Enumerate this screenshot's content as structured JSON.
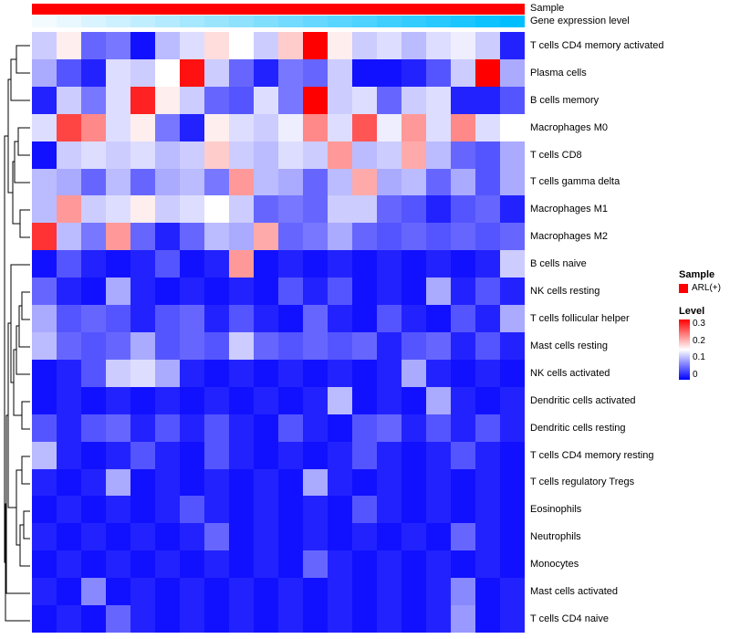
{
  "figure": {
    "annotations": {
      "sample_label": "Sample",
      "expression_label": "Gene expression level"
    },
    "legend": {
      "sample_title": "Sample",
      "sample_items": [
        {
          "label": "ARL(+)",
          "color": "#FF0000"
        }
      ],
      "level_title": "Level",
      "level_ticks": [
        "0.3",
        "0.2",
        "0.1",
        "0"
      ]
    },
    "colors": {
      "low": "#0000FF",
      "mid": "#FFFFFF",
      "high": "#FF0000",
      "annotation_sample": "#FF0000",
      "annotation_expr_start": "#F4FBFE",
      "annotation_expr_end": "#00BFFF"
    }
  },
  "chart_data": {
    "type": "heatmap",
    "title": "",
    "n_samples": 20,
    "vmin": 0,
    "vmax": 0.3,
    "legend_position": "right",
    "rows": [
      "T cells CD4 memory activated",
      "Plasma cells",
      "B cells memory",
      "Macrophages M0",
      "T cells CD8",
      "T cells gamma delta",
      "Macrophages M1",
      "Macrophages M2",
      "B cells naive",
      "NK cells resting",
      "T cells follicular helper",
      "Mast cells resting",
      "NK cells activated",
      "Dendritic cells activated",
      "Dendritic cells resting",
      "T cells CD4 memory resting",
      "T cells regulatory Tregs",
      "Eosinophils",
      "Neutrophils",
      "Monocytes",
      "Mast cells activated",
      "T cells CD4 naive"
    ],
    "column_annotations": {
      "sample_group": [
        "ARL(+)",
        "ARL(+)",
        "ARL(+)",
        "ARL(+)",
        "ARL(+)",
        "ARL(+)",
        "ARL(+)",
        "ARL(+)",
        "ARL(+)",
        "ARL(+)",
        "ARL(+)",
        "ARL(+)",
        "ARL(+)",
        "ARL(+)",
        "ARL(+)",
        "ARL(+)",
        "ARL(+)",
        "ARL(+)",
        "ARL(+)",
        "ARL(+)"
      ],
      "gene_expression_gradient": [
        0,
        0.05,
        0.11,
        0.16,
        0.21,
        0.26,
        0.32,
        0.37,
        0.42,
        0.47,
        0.53,
        0.58,
        0.63,
        0.68,
        0.74,
        0.79,
        0.84,
        0.89,
        0.95,
        1
      ]
    },
    "values": [
      [
        0.12,
        0.16,
        0.06,
        0.07,
        0.01,
        0.11,
        0.13,
        0.17,
        0.15,
        0.12,
        0.18,
        0.3,
        0.16,
        0.12,
        0.13,
        0.11,
        0.13,
        0.14,
        0.12,
        0.02
      ],
      [
        0.1,
        0.05,
        0.02,
        0.13,
        0.12,
        0.15,
        0.29,
        0.12,
        0.06,
        0.02,
        0.07,
        0.06,
        0.12,
        0.01,
        0.01,
        0.02,
        0.05,
        0.12,
        0.3,
        0.1
      ],
      [
        0.02,
        0.12,
        0.07,
        0.13,
        0.28,
        0.16,
        0.12,
        0.06,
        0.05,
        0.13,
        0.07,
        0.3,
        0.12,
        0.13,
        0.06,
        0.12,
        0.13,
        0.02,
        0.02,
        0.05
      ],
      [
        0.13,
        0.26,
        0.22,
        0.13,
        0.16,
        0.07,
        0.02,
        0.16,
        0.13,
        0.12,
        0.14,
        0.22,
        0.13,
        0.25,
        0.14,
        0.21,
        0.13,
        0.22,
        0.13,
        0.15
      ],
      [
        0.01,
        0.12,
        0.13,
        0.12,
        0.13,
        0.11,
        0.12,
        0.18,
        0.12,
        0.11,
        0.13,
        0.12,
        0.21,
        0.11,
        0.12,
        0.2,
        0.11,
        0.06,
        0.05,
        0.1
      ],
      [
        0.11,
        0.1,
        0.06,
        0.11,
        0.06,
        0.1,
        0.11,
        0.07,
        0.21,
        0.11,
        0.1,
        0.06,
        0.11,
        0.2,
        0.1,
        0.11,
        0.06,
        0.1,
        0.05,
        0.1
      ],
      [
        0.11,
        0.21,
        0.12,
        0.13,
        0.16,
        0.12,
        0.13,
        0.15,
        0.12,
        0.06,
        0.07,
        0.06,
        0.12,
        0.12,
        0.06,
        0.05,
        0.02,
        0.05,
        0.06,
        0.02
      ],
      [
        0.27,
        0.11,
        0.07,
        0.21,
        0.06,
        0.02,
        0.06,
        0.11,
        0.1,
        0.2,
        0.06,
        0.07,
        0.1,
        0.06,
        0.05,
        0.06,
        0.05,
        0.06,
        0.05,
        0.06
      ],
      [
        0.01,
        0.05,
        0.02,
        0.01,
        0.02,
        0.05,
        0.01,
        0.02,
        0.21,
        0.01,
        0.02,
        0.01,
        0.02,
        0.01,
        0.02,
        0.01,
        0.02,
        0.01,
        0.02,
        0.12
      ],
      [
        0.06,
        0.02,
        0.01,
        0.1,
        0.02,
        0.01,
        0.02,
        0.01,
        0.02,
        0.01,
        0.05,
        0.02,
        0.05,
        0.01,
        0.02,
        0.01,
        0.1,
        0.02,
        0.05,
        0.02
      ],
      [
        0.1,
        0.05,
        0.06,
        0.05,
        0.02,
        0.05,
        0.06,
        0.02,
        0.05,
        0.02,
        0.01,
        0.06,
        0.02,
        0.01,
        0.05,
        0.02,
        0.01,
        0.05,
        0.02,
        0.1
      ],
      [
        0.11,
        0.06,
        0.05,
        0.06,
        0.1,
        0.05,
        0.06,
        0.05,
        0.12,
        0.06,
        0.05,
        0.06,
        0.05,
        0.06,
        0.02,
        0.05,
        0.06,
        0.02,
        0.05,
        0.02
      ],
      [
        0.01,
        0.02,
        0.05,
        0.12,
        0.13,
        0.1,
        0.02,
        0.01,
        0.02,
        0.01,
        0.02,
        0.01,
        0.02,
        0.01,
        0.02,
        0.1,
        0.02,
        0.01,
        0.02,
        0.01
      ],
      [
        0.01,
        0.02,
        0.01,
        0.02,
        0.01,
        0.02,
        0.01,
        0.02,
        0.01,
        0.02,
        0.01,
        0.02,
        0.11,
        0.01,
        0.02,
        0.01,
        0.1,
        0.02,
        0.01,
        0.02
      ],
      [
        0.05,
        0.02,
        0.05,
        0.06,
        0.02,
        0.05,
        0.02,
        0.05,
        0.02,
        0.01,
        0.05,
        0.02,
        0.01,
        0.05,
        0.06,
        0.02,
        0.05,
        0.02,
        0.05,
        0.02
      ],
      [
        0.11,
        0.02,
        0.01,
        0.02,
        0.05,
        0.02,
        0.01,
        0.05,
        0.02,
        0.01,
        0.02,
        0.01,
        0.02,
        0.05,
        0.02,
        0.01,
        0.02,
        0.05,
        0.02,
        0.01
      ],
      [
        0.02,
        0.01,
        0.02,
        0.1,
        0.01,
        0.02,
        0.01,
        0.02,
        0.01,
        0.02,
        0.01,
        0.1,
        0.02,
        0.01,
        0.02,
        0.01,
        0.02,
        0.01,
        0.02,
        0.01
      ],
      [
        0.01,
        0.02,
        0.01,
        0.02,
        0.01,
        0.02,
        0.05,
        0.02,
        0.01,
        0.02,
        0.01,
        0.02,
        0.01,
        0.05,
        0.02,
        0.01,
        0.02,
        0.01,
        0.02,
        0.01
      ],
      [
        0.02,
        0.01,
        0.02,
        0.01,
        0.02,
        0.01,
        0.02,
        0.06,
        0.01,
        0.02,
        0.01,
        0.02,
        0.01,
        0.02,
        0.01,
        0.02,
        0.01,
        0.06,
        0.02,
        0.01
      ],
      [
        0.01,
        0.02,
        0.01,
        0.02,
        0.01,
        0.02,
        0.01,
        0.02,
        0.01,
        0.02,
        0.01,
        0.06,
        0.02,
        0.01,
        0.02,
        0.01,
        0.02,
        0.01,
        0.02,
        0.01
      ],
      [
        0.02,
        0.01,
        0.08,
        0.01,
        0.02,
        0.01,
        0.02,
        0.01,
        0.02,
        0.01,
        0.02,
        0.01,
        0.02,
        0.01,
        0.02,
        0.01,
        0.02,
        0.08,
        0.01,
        0.02
      ],
      [
        0.01,
        0.02,
        0.01,
        0.06,
        0.02,
        0.01,
        0.02,
        0.01,
        0.02,
        0.01,
        0.02,
        0.01,
        0.02,
        0.01,
        0.02,
        0.01,
        0.02,
        0.09,
        0.01,
        0.02
      ]
    ]
  }
}
